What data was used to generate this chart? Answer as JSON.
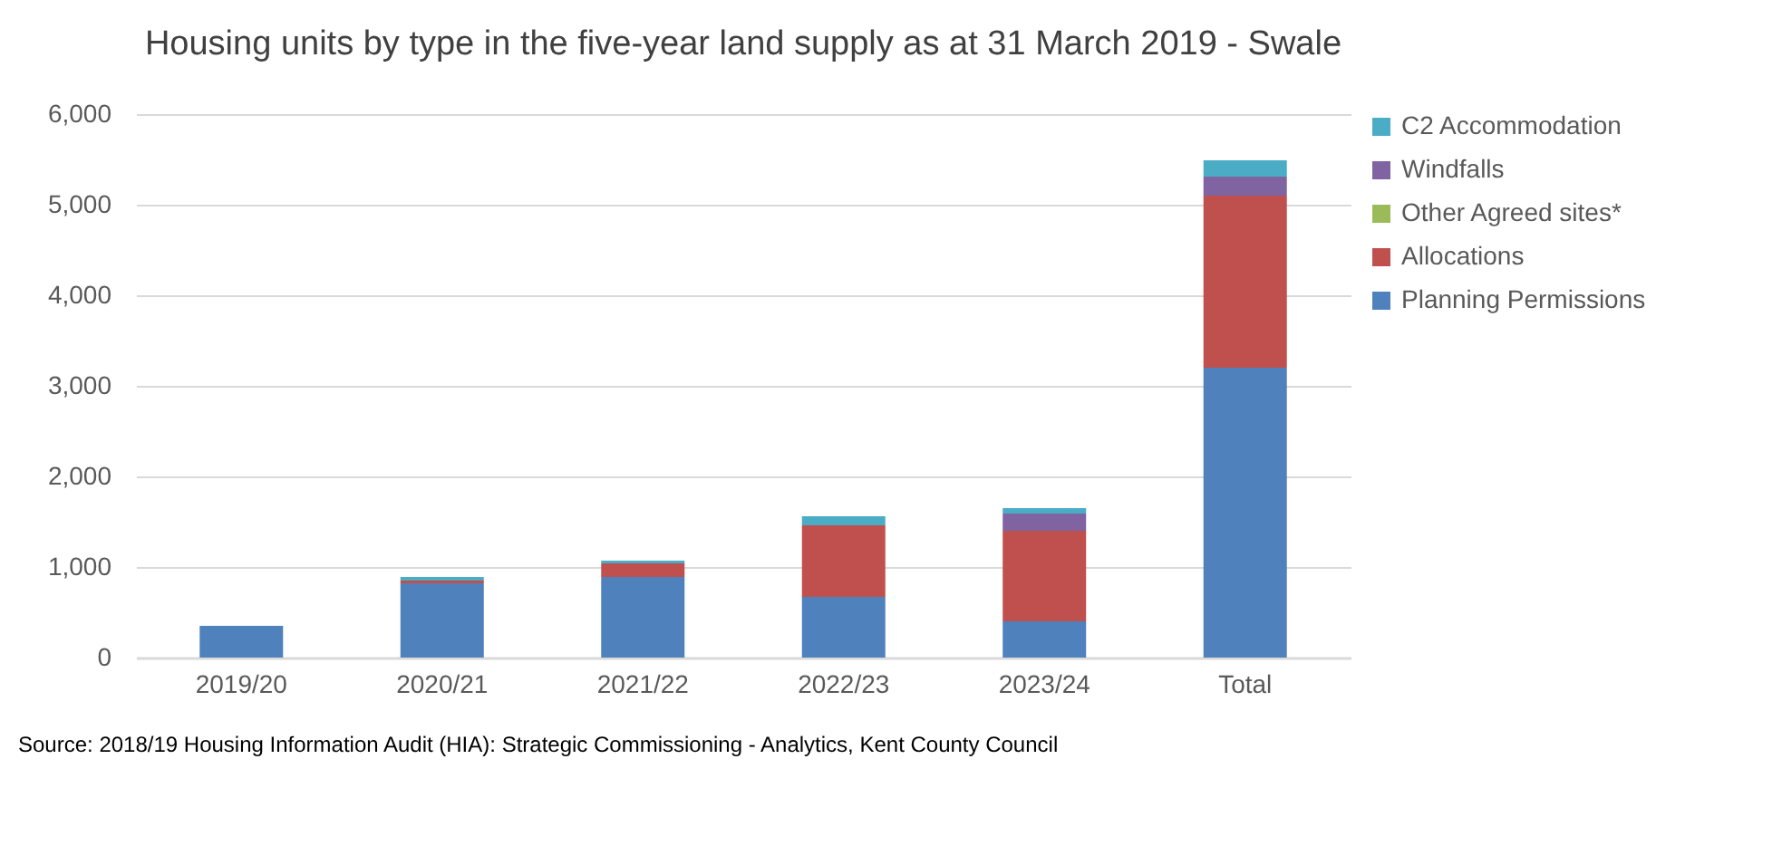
{
  "chart_data": {
    "type": "bar",
    "stacked": true,
    "title": "Housing units by type in the five-year land supply as at 31 March 2019 - Swale",
    "categories": [
      "2019/20",
      "2020/21",
      "2021/22",
      "2022/23",
      "2023/24",
      "Total"
    ],
    "series": [
      {
        "name": "Planning Permissions",
        "color": "#4f81bd",
        "values": [
          350,
          820,
          890,
          670,
          400,
          3200
        ]
      },
      {
        "name": "Allocations",
        "color": "#c0504d",
        "values": [
          null,
          30,
          150,
          790,
          1000,
          1900
        ]
      },
      {
        "name": "Other Agreed sites*",
        "color": "#9bbb59",
        "values": [
          null,
          null,
          null,
          null,
          null,
          null
        ]
      },
      {
        "name": "Windfalls",
        "color": "#8064a2",
        "values": [
          null,
          null,
          null,
          null,
          190,
          210
        ]
      },
      {
        "name": "C2 Accommodation",
        "color": "#4bacc6",
        "values": [
          null,
          40,
          30,
          100,
          60,
          180
        ]
      }
    ],
    "ylim": [
      0,
      6000
    ],
    "yticks": [
      0,
      {
        "value": 1000,
        "label": "1,000"
      },
      {
        "value": 2000,
        "label": "2,000"
      },
      {
        "value": 3000,
        "label": "3,000"
      },
      {
        "value": 4000,
        "label": "4,000"
      },
      {
        "value": 5000,
        "label": "5,000"
      },
      {
        "value": 6000,
        "label": "6,000"
      }
    ],
    "grid": "y",
    "legend": "right",
    "annotations": [
      "Source: 2018/19 Housing Information Audit (HIA): Strategic Commissioning - Analytics, Kent County Council"
    ]
  }
}
